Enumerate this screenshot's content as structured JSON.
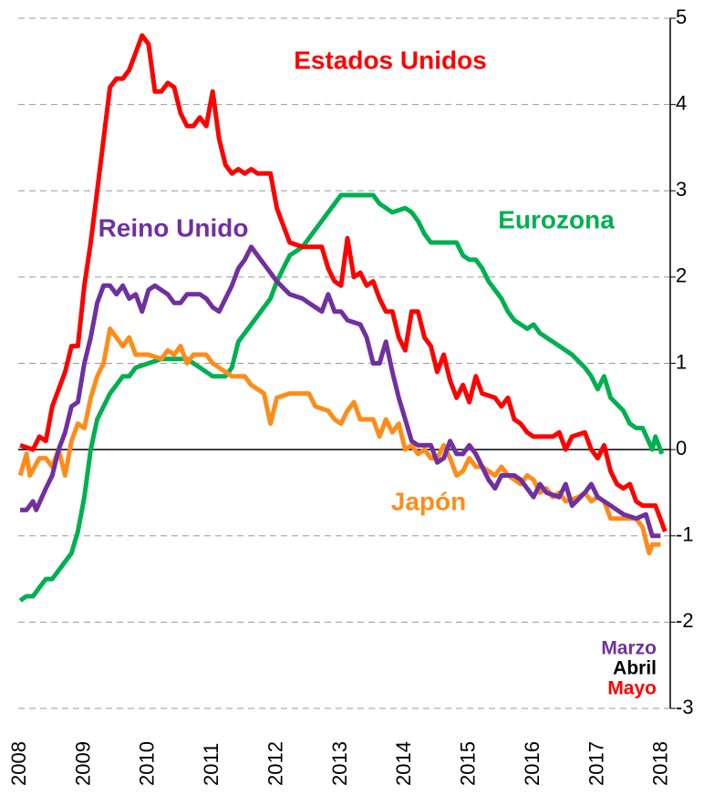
{
  "chart_data": {
    "type": "line",
    "xlim": [
      2007.97,
      2018.13
    ],
    "xticks": [
      2008,
      2009,
      2010,
      2011,
      2012,
      2013,
      2014,
      2015,
      2016,
      2017,
      2018
    ],
    "ylim": [
      -3,
      5
    ],
    "yticks": [
      -3,
      -2,
      -1,
      0,
      1,
      2,
      3,
      4,
      5
    ],
    "grid": true,
    "series": [
      {
        "name": "Estados Unidos",
        "color": "#ff0000",
        "x": [
          2008.0,
          2008.2,
          2008.3,
          2008.4,
          2008.5,
          2008.7,
          2008.8,
          2008.9,
          2009.0,
          2009.1,
          2009.2,
          2009.3,
          2009.4,
          2009.5,
          2009.6,
          2009.7,
          2009.8,
          2009.9,
          2010.0,
          2010.1,
          2010.2,
          2010.3,
          2010.4,
          2010.5,
          2010.6,
          2010.7,
          2010.8,
          2010.9,
          2011.0,
          2011.1,
          2011.2,
          2011.3,
          2011.4,
          2011.5,
          2011.6,
          2011.7,
          2011.9,
          2012.0,
          2012.1,
          2012.2,
          2012.4,
          2012.7,
          2012.8,
          2012.9,
          2013.0,
          2013.1,
          2013.2,
          2013.3,
          2013.4,
          2013.5,
          2013.6,
          2013.7,
          2013.8,
          2013.9,
          2014.0,
          2014.1,
          2014.2,
          2014.3,
          2014.4,
          2014.5,
          2014.6,
          2014.7,
          2014.8,
          2014.9,
          2015.0,
          2015.1,
          2015.2,
          2015.4,
          2015.5,
          2015.6,
          2015.7,
          2015.8,
          2015.9,
          2016.0,
          2016.3,
          2016.4,
          2016.5,
          2016.6,
          2016.8,
          2016.9,
          2017.0,
          2017.1,
          2017.2,
          2017.3,
          2017.4,
          2017.5,
          2017.6,
          2017.7,
          2017.9,
          2018.05
        ],
        "values": [
          0.05,
          0.0,
          0.15,
          0.1,
          0.5,
          0.9,
          1.2,
          1.2,
          1.9,
          2.4,
          3.0,
          3.6,
          4.2,
          4.3,
          4.3,
          4.4,
          4.6,
          4.8,
          4.7,
          4.15,
          4.15,
          4.25,
          4.2,
          3.9,
          3.75,
          3.75,
          3.85,
          3.75,
          4.15,
          3.6,
          3.3,
          3.2,
          3.25,
          3.2,
          3.25,
          3.2,
          3.2,
          2.8,
          2.6,
          2.4,
          2.35,
          2.35,
          2.1,
          1.95,
          1.9,
          2.45,
          2.0,
          2.05,
          1.9,
          1.95,
          1.75,
          1.6,
          1.6,
          1.3,
          1.15,
          1.6,
          1.6,
          1.3,
          1.2,
          0.9,
          1.1,
          0.8,
          0.6,
          0.75,
          0.55,
          0.85,
          0.65,
          0.6,
          0.5,
          0.6,
          0.35,
          0.3,
          0.2,
          0.15,
          0.15,
          0.2,
          0.0,
          0.15,
          0.2,
          0.0,
          -0.1,
          0.05,
          -0.25,
          -0.4,
          -0.45,
          -0.4,
          -0.6,
          -0.65,
          -0.65,
          -0.95
        ]
      },
      {
        "name": "Reino Unido",
        "color": "#7030a0",
        "x": [
          2008.0,
          2008.1,
          2008.2,
          2008.25,
          2008.4,
          2008.5,
          2008.6,
          2008.7,
          2008.8,
          2008.9,
          2009.0,
          2009.1,
          2009.2,
          2009.3,
          2009.4,
          2009.5,
          2009.6,
          2009.7,
          2009.8,
          2009.9,
          2010.0,
          2010.1,
          2010.2,
          2010.3,
          2010.4,
          2010.5,
          2010.6,
          2010.8,
          2010.9,
          2011.0,
          2011.1,
          2011.2,
          2011.3,
          2011.4,
          2011.5,
          2011.6,
          2011.7,
          2011.8,
          2011.9,
          2012.0,
          2012.2,
          2012.4,
          2012.5,
          2012.6,
          2012.7,
          2012.8,
          2012.9,
          2013.0,
          2013.1,
          2013.3,
          2013.4,
          2013.5,
          2013.6,
          2013.7,
          2013.8,
          2013.9,
          2014.0,
          2014.1,
          2014.2,
          2014.4,
          2014.5,
          2014.6,
          2014.7,
          2014.8,
          2014.9,
          2015.0,
          2015.1,
          2015.2,
          2015.3,
          2015.4,
          2015.5,
          2015.7,
          2015.8,
          2015.9,
          2016.0,
          2016.1,
          2016.2,
          2016.4,
          2016.5,
          2016.6,
          2016.8,
          2016.9,
          2017.0,
          2017.2,
          2017.4,
          2017.6,
          2017.75,
          2017.85,
          2017.98
        ],
        "values": [
          -0.7,
          -0.7,
          -0.6,
          -0.7,
          -0.45,
          -0.3,
          0.0,
          0.2,
          0.5,
          0.55,
          1.0,
          1.3,
          1.7,
          1.9,
          1.9,
          1.8,
          1.9,
          1.75,
          1.8,
          1.6,
          1.85,
          1.9,
          1.85,
          1.8,
          1.7,
          1.7,
          1.8,
          1.8,
          1.75,
          1.65,
          1.6,
          1.75,
          1.9,
          2.1,
          2.2,
          2.35,
          2.25,
          2.15,
          2.05,
          1.95,
          1.8,
          1.75,
          1.7,
          1.65,
          1.6,
          1.8,
          1.6,
          1.6,
          1.5,
          1.45,
          1.3,
          1.0,
          1.0,
          1.25,
          0.9,
          0.6,
          0.35,
          0.1,
          0.05,
          0.05,
          -0.15,
          -0.1,
          0.1,
          -0.05,
          -0.05,
          0.05,
          -0.05,
          -0.2,
          -0.35,
          -0.45,
          -0.3,
          -0.3,
          -0.35,
          -0.45,
          -0.55,
          -0.4,
          -0.5,
          -0.55,
          -0.4,
          -0.65,
          -0.5,
          -0.4,
          -0.55,
          -0.65,
          -0.75,
          -0.8,
          -0.75,
          -1.0,
          -1.0
        ]
      },
      {
        "name": "Eurozona",
        "color": "#00b050",
        "x": [
          2008.0,
          2008.1,
          2008.2,
          2008.3,
          2008.4,
          2008.5,
          2008.6,
          2008.7,
          2008.8,
          2008.9,
          2009.0,
          2009.1,
          2009.2,
          2009.3,
          2009.4,
          2009.5,
          2009.6,
          2009.7,
          2009.8,
          2010.0,
          2010.2,
          2010.4,
          2010.6,
          2010.8,
          2010.9,
          2011.0,
          2011.2,
          2011.3,
          2011.4,
          2011.5,
          2011.6,
          2011.7,
          2011.8,
          2011.9,
          2012.0,
          2012.1,
          2012.2,
          2012.4,
          2012.6,
          2012.8,
          2013.0,
          2013.2,
          2013.5,
          2013.6,
          2013.8,
          2014.0,
          2014.1,
          2014.2,
          2014.3,
          2014.4,
          2014.5,
          2014.6,
          2014.8,
          2014.9,
          2015.0,
          2015.1,
          2015.2,
          2015.3,
          2015.4,
          2015.5,
          2015.6,
          2015.7,
          2015.9,
          2016.0,
          2016.1,
          2016.3,
          2016.4,
          2016.6,
          2016.8,
          2016.9,
          2017.0,
          2017.1,
          2017.2,
          2017.4,
          2017.5,
          2017.6,
          2017.7,
          2017.85,
          2017.9,
          2018.0
        ],
        "values": [
          -1.75,
          -1.7,
          -1.7,
          -1.6,
          -1.5,
          -1.5,
          -1.4,
          -1.3,
          -1.2,
          -0.95,
          -0.55,
          0.0,
          0.35,
          0.5,
          0.65,
          0.75,
          0.85,
          0.85,
          0.95,
          1.0,
          1.05,
          1.05,
          1.05,
          0.95,
          0.9,
          0.85,
          0.85,
          0.95,
          1.25,
          1.35,
          1.45,
          1.55,
          1.65,
          1.75,
          1.95,
          2.1,
          2.25,
          2.35,
          2.55,
          2.75,
          2.95,
          2.95,
          2.95,
          2.85,
          2.75,
          2.8,
          2.75,
          2.65,
          2.5,
          2.4,
          2.4,
          2.4,
          2.4,
          2.25,
          2.2,
          2.2,
          2.1,
          1.95,
          1.85,
          1.75,
          1.6,
          1.5,
          1.4,
          1.45,
          1.35,
          1.25,
          1.2,
          1.1,
          0.95,
          0.85,
          0.7,
          0.85,
          0.6,
          0.45,
          0.3,
          0.25,
          0.25,
          0.0,
          0.15,
          -0.05
        ]
      },
      {
        "name": "Japón",
        "color": "#ff8c1a",
        "x": [
          2008.0,
          2008.1,
          2008.15,
          2008.3,
          2008.4,
          2008.5,
          2008.6,
          2008.7,
          2008.8,
          2008.9,
          2009.0,
          2009.1,
          2009.2,
          2009.3,
          2009.4,
          2009.5,
          2009.6,
          2009.7,
          2009.8,
          2010.0,
          2010.2,
          2010.3,
          2010.4,
          2010.5,
          2010.6,
          2010.7,
          2010.9,
          2011.0,
          2011.1,
          2011.2,
          2011.3,
          2011.5,
          2011.6,
          2011.7,
          2011.8,
          2011.9,
          2012.0,
          2012.2,
          2012.5,
          2012.6,
          2012.8,
          2012.9,
          2013.0,
          2013.1,
          2013.2,
          2013.3,
          2013.5,
          2013.6,
          2013.7,
          2013.8,
          2013.9,
          2014.0,
          2014.1,
          2014.2,
          2014.3,
          2014.4,
          2014.5,
          2014.6,
          2014.7,
          2014.8,
          2014.9,
          2015.0,
          2015.1,
          2015.2,
          2015.3,
          2015.4,
          2015.5,
          2015.6,
          2015.7,
          2015.8,
          2015.9,
          2016.0,
          2016.1,
          2016.2,
          2016.3,
          2016.4,
          2016.5,
          2016.7,
          2016.8,
          2016.9,
          2017.0,
          2017.1,
          2017.2,
          2017.4,
          2017.6,
          2017.7,
          2017.8,
          2017.85,
          2017.98
        ],
        "values": [
          -0.3,
          -0.05,
          -0.3,
          -0.1,
          -0.1,
          -0.2,
          0.0,
          -0.3,
          0.1,
          0.3,
          0.25,
          0.6,
          0.85,
          1.0,
          1.4,
          1.3,
          1.2,
          1.3,
          1.1,
          1.1,
          1.05,
          1.15,
          1.1,
          1.2,
          1.0,
          1.1,
          1.1,
          1.0,
          0.95,
          0.9,
          0.85,
          0.85,
          0.75,
          0.7,
          0.65,
          0.3,
          0.6,
          0.65,
          0.65,
          0.5,
          0.45,
          0.35,
          0.3,
          0.45,
          0.55,
          0.35,
          0.35,
          0.15,
          0.35,
          0.2,
          0.3,
          0.0,
          0.05,
          -0.05,
          0.0,
          -0.1,
          -0.1,
          0.05,
          -0.1,
          -0.3,
          -0.25,
          -0.1,
          -0.2,
          -0.2,
          -0.25,
          -0.3,
          -0.2,
          -0.3,
          -0.35,
          -0.4,
          -0.3,
          -0.35,
          -0.5,
          -0.45,
          -0.55,
          -0.5,
          -0.6,
          -0.55,
          -0.5,
          -0.6,
          -0.55,
          -0.6,
          -0.8,
          -0.8,
          -0.8,
          -0.9,
          -1.2,
          -1.1,
          -1.1
        ]
      }
    ],
    "notes": [
      {
        "text": "Marzo",
        "color": "#7030a0"
      },
      {
        "text": "Abril",
        "color": "#000000"
      },
      {
        "text": "Mayo",
        "color": "#ff0000"
      }
    ]
  }
}
